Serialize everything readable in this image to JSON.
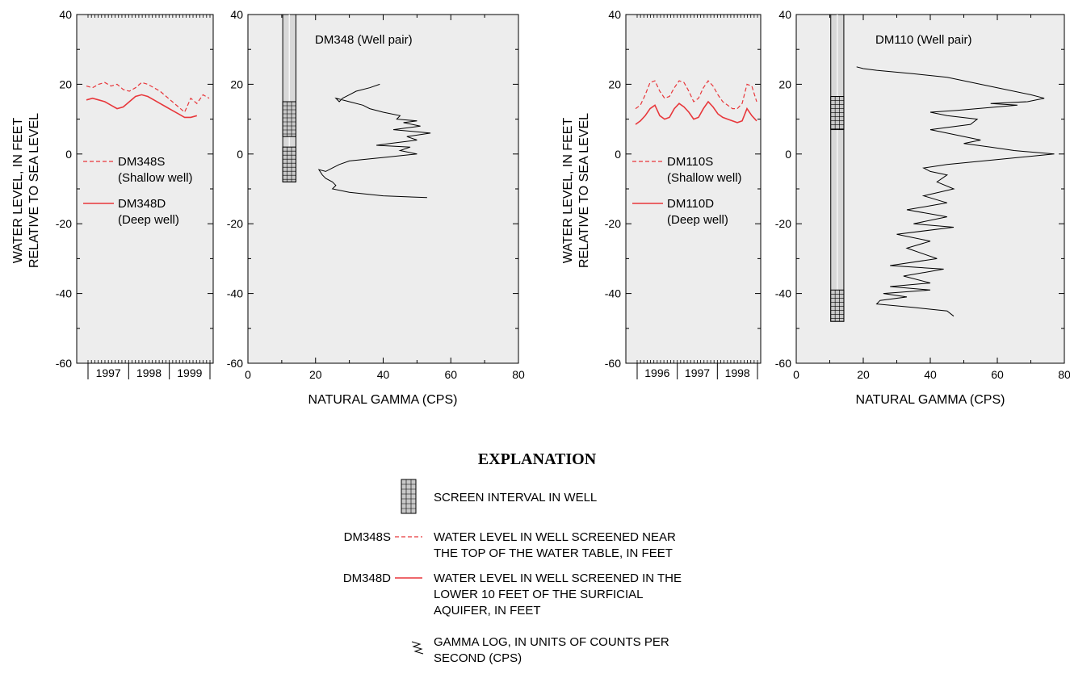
{
  "wl_axis": {
    "ylabel_line1": "WATER LEVEL, IN FEET",
    "ylabel_line2": "RELATIVE TO SEA LEVEL",
    "yticks": [
      40,
      20,
      0,
      -20,
      -40,
      -60
    ]
  },
  "gamma_axis": {
    "xlabel": "NATURAL GAMMA (CPS)",
    "xticks": [
      0,
      20,
      40,
      60,
      80
    ]
  },
  "colors": {
    "water": "#e8373b",
    "gamma": "#000000",
    "panel": "#ededed",
    "casing": "#d8d8d8"
  },
  "left_pair": {
    "title": "DM348 (Well pair)",
    "years": [
      "1997",
      "1998",
      "1999"
    ],
    "legend": [
      {
        "name": "DM348S",
        "desc": "(Shallow well)",
        "style": "dashed"
      },
      {
        "name": "DM348D",
        "desc": "(Deep well)",
        "style": "solid"
      }
    ]
  },
  "right_pair": {
    "title": "DM110 (Well pair)",
    "years": [
      "1996",
      "1997",
      "1998"
    ],
    "legend": [
      {
        "name": "DM110S",
        "desc": "(Shallow well)",
        "style": "dashed"
      },
      {
        "name": "DM110D",
        "desc": "(Deep well)",
        "style": "solid"
      }
    ]
  },
  "explanation": {
    "title": "EXPLANATION",
    "screen_label": "SCREEN INTERVAL IN WELL",
    "shallow_key": "DM348S",
    "shallow_line1": "WATER LEVEL IN WELL SCREENED NEAR",
    "shallow_line2": "THE TOP OF THE WATER TABLE, IN FEET",
    "deep_key": "DM348D",
    "deep_line1": "WATER LEVEL IN WELL SCREENED IN THE",
    "deep_line2": "LOWER 10 FEET OF THE SURFICIAL",
    "deep_line3": "AQUIFER, IN FEET",
    "gamma_line1": "GAMMA LOG, IN UNITS OF COUNTS PER",
    "gamma_line2": "SECOND (CPS)"
  },
  "chart_data": [
    {
      "type": "line",
      "well": "DM348 water levels",
      "ylabel": "WATER LEVEL, IN FEET RELATIVE TO SEA LEVEL",
      "ylim": [
        -60,
        40
      ],
      "x_ticklabels": [
        "1997",
        "1998",
        "1999"
      ],
      "series": [
        {
          "name": "DM348S",
          "style": "dashed",
          "x": [
            0,
            0.05,
            0.1,
            0.15,
            0.2,
            0.25,
            0.3,
            0.35,
            0.4,
            0.45,
            0.5,
            0.55,
            0.6,
            0.65,
            0.7,
            0.75,
            0.8,
            0.85,
            0.9,
            0.95,
            1
          ],
          "y": [
            19.5,
            19,
            20,
            20.5,
            19.5,
            20,
            18.5,
            18,
            19,
            20.5,
            20,
            19,
            18,
            16.5,
            15,
            13.5,
            12,
            16,
            14.5,
            17,
            16
          ]
        },
        {
          "name": "DM348D",
          "style": "solid",
          "x": [
            0,
            0.05,
            0.1,
            0.15,
            0.2,
            0.25,
            0.3,
            0.35,
            0.4,
            0.45,
            0.5,
            0.55,
            0.6,
            0.65,
            0.7,
            0.75,
            0.8,
            0.85,
            0.9
          ],
          "y": [
            15.5,
            16,
            15.5,
            15,
            14,
            13,
            13.5,
            15,
            16.5,
            17,
            16.5,
            15.5,
            14.5,
            13.5,
            12.5,
            11.5,
            10.5,
            10.5,
            11
          ]
        }
      ]
    },
    {
      "type": "line",
      "well": "DM348 gamma log",
      "title": "DM348 (Well pair)",
      "xlabel": "NATURAL GAMMA (CPS)",
      "xlim": [
        0,
        80
      ],
      "ylim": [
        -60,
        40
      ],
      "screens": [
        [
          15,
          5
        ],
        [
          2,
          -8
        ]
      ],
      "series": [
        {
          "name": "gamma",
          "x": [
            39,
            36,
            32,
            30,
            28,
            27,
            26,
            30,
            34,
            36,
            40,
            45,
            44,
            50,
            46,
            51,
            43,
            54,
            47,
            50,
            42,
            38,
            48,
            45,
            50,
            40,
            30,
            27,
            25,
            23,
            21,
            22,
            23,
            25,
            26,
            25,
            30,
            40,
            53
          ],
          "y": [
            20,
            19,
            18,
            17,
            16,
            15,
            16,
            15,
            14,
            13,
            12,
            11,
            10,
            9.5,
            9,
            8,
            7,
            6,
            5,
            4,
            3,
            2.5,
            2,
            1,
            0,
            -1,
            -2,
            -3,
            -4,
            -5,
            -4.5,
            -6,
            -7,
            -8,
            -9,
            -10,
            -11,
            -12,
            -12.5
          ]
        }
      ]
    },
    {
      "type": "line",
      "well": "DM110 water levels",
      "ylabel": "WATER LEVEL, IN FEET RELATIVE TO SEA LEVEL",
      "ylim": [
        -60,
        40
      ],
      "x_ticklabels": [
        "1996",
        "1997",
        "1998"
      ],
      "series": [
        {
          "name": "DM110S",
          "style": "dashed",
          "x": [
            0,
            0.04,
            0.08,
            0.12,
            0.16,
            0.2,
            0.24,
            0.28,
            0.32,
            0.36,
            0.4,
            0.44,
            0.48,
            0.52,
            0.56,
            0.6,
            0.64,
            0.68,
            0.72,
            0.76,
            0.8,
            0.84,
            0.88,
            0.92,
            0.96,
            1
          ],
          "y": [
            13,
            14,
            17,
            20.5,
            21,
            18,
            16,
            16.5,
            19,
            21,
            20.5,
            18,
            15,
            16,
            19,
            21,
            19.5,
            17,
            15,
            14,
            13,
            13,
            14.5,
            20,
            19.5,
            15
          ]
        },
        {
          "name": "DM110D",
          "style": "solid",
          "x": [
            0,
            0.04,
            0.08,
            0.12,
            0.16,
            0.2,
            0.24,
            0.28,
            0.32,
            0.36,
            0.4,
            0.44,
            0.48,
            0.52,
            0.56,
            0.6,
            0.64,
            0.68,
            0.72,
            0.76,
            0.8,
            0.84,
            0.88,
            0.92,
            0.96,
            1
          ],
          "y": [
            8.5,
            9.5,
            11,
            13,
            14,
            11,
            10,
            10.5,
            13,
            14.5,
            13.5,
            12,
            10,
            10.5,
            13,
            15,
            13.5,
            11.5,
            10.5,
            10,
            9.5,
            9,
            9.5,
            13,
            11,
            9.5
          ]
        }
      ]
    },
    {
      "type": "line",
      "well": "DM110 gamma log",
      "title": "DM110 (Well pair)",
      "xlabel": "NATURAL GAMMA (CPS)",
      "xlim": [
        0,
        80
      ],
      "ylim": [
        -60,
        40
      ],
      "screens": [
        [
          16.5,
          7
        ],
        [
          -39,
          -48
        ]
      ],
      "series": [
        {
          "name": "gamma",
          "x": [
            18,
            20,
            24,
            35,
            45,
            60,
            70,
            74,
            69,
            58,
            66,
            48,
            40,
            45,
            54,
            52,
            40,
            45,
            55,
            50,
            58,
            65,
            77,
            45,
            38,
            40,
            45,
            42,
            47,
            38,
            45,
            33,
            45,
            35,
            47,
            30,
            40,
            33,
            42,
            28,
            44,
            32,
            40,
            28,
            40,
            26,
            33,
            25,
            24,
            35,
            45,
            47
          ],
          "y": [
            25,
            24.5,
            24,
            23,
            22,
            19,
            17,
            16,
            15,
            14.5,
            14,
            12.5,
            12,
            11,
            10,
            8.5,
            7,
            6,
            4,
            3,
            2,
            1,
            0,
            -3,
            -4,
            -5,
            -6,
            -8,
            -10,
            -12,
            -14,
            -16,
            -18,
            -20,
            -21,
            -23,
            -25,
            -27,
            -30,
            -32,
            -33,
            -35,
            -37,
            -38,
            -39,
            -40,
            -41,
            -42,
            -43,
            -44,
            -45,
            -46.5
          ]
        }
      ]
    }
  ]
}
